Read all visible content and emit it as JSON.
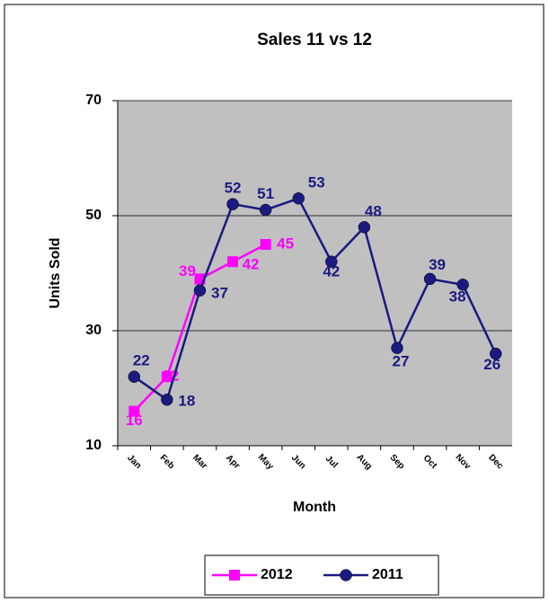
{
  "chart_data": {
    "type": "line",
    "title": "Sales 11 vs 12",
    "x_label": "Month",
    "y_label": "Units Sold",
    "categories": [
      "Jan",
      "Feb",
      "Mar",
      "Apr",
      "May",
      "Jun",
      "Jul",
      "Aug",
      "Sep",
      "Oct",
      "Nov",
      "Dec"
    ],
    "series": [
      {
        "name": "2012",
        "color": "#ff00ff",
        "marker": "square",
        "values": [
          16,
          22,
          39,
          42,
          45,
          null,
          null,
          null,
          null,
          null,
          null,
          null
        ]
      },
      {
        "name": "2011",
        "color": "#1a1a80",
        "marker": "circle",
        "values": [
          22,
          18,
          37,
          52,
          51,
          53,
          42,
          48,
          27,
          39,
          38,
          26
        ]
      }
    ],
    "ylim": [
      10,
      70
    ],
    "yticks": [
      10,
      30,
      50,
      70
    ],
    "grid": true,
    "legend": "bottom"
  }
}
